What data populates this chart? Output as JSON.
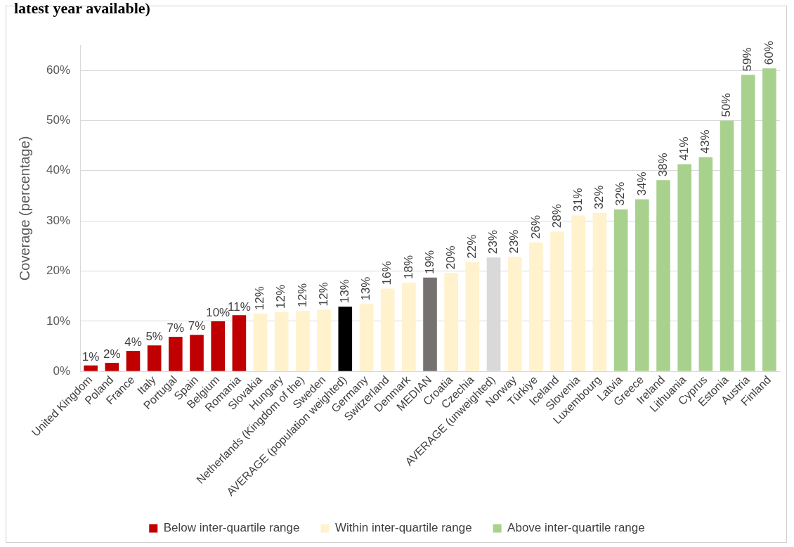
{
  "chart_data": {
    "type": "bar",
    "title": "latest year available)",
    "ylabel": "Coverage (percentage)",
    "categories": [
      "United Kingdom",
      "Poland",
      "France",
      "Italy",
      "Portugal",
      "Spain",
      "Belgium",
      "Romania",
      "Slovakia",
      "Hungary",
      "Netherlands (Kingdom of the)",
      "Sweden",
      "AVERAGE (population weighted)",
      "Germany",
      "Switzerland",
      "Denmark",
      "MEDIAN",
      "Croatia",
      "Czechia",
      "AVERAGE (unweighted)",
      "Norway",
      "Türkiye",
      "Iceland",
      "Slovenia",
      "Luxembourg",
      "Latvia",
      "Greece",
      "Ireland",
      "Lithuania",
      "Cyprus",
      "Estonia",
      "Austria",
      "Finland"
    ],
    "series": [
      {
        "name": "Below inter-quartile range",
        "color": "#c00000",
        "values": [
          1.2,
          1.7,
          4.1,
          5.2,
          6.9,
          7.3,
          10.0,
          11.2,
          null,
          null,
          null,
          null,
          null,
          null,
          null,
          null,
          null,
          null,
          null,
          null,
          null,
          null,
          null,
          null,
          null,
          null,
          null,
          null,
          null,
          null,
          null,
          null,
          null
        ],
        "value_labels": [
          "1%",
          "2%",
          "4%",
          "5%",
          "7%",
          "7%",
          "10%",
          "11%",
          null,
          null,
          null,
          null,
          null,
          null,
          null,
          null,
          null,
          null,
          null,
          null,
          null,
          null,
          null,
          null,
          null,
          null,
          null,
          null,
          null,
          null,
          null,
          null,
          null
        ]
      },
      {
        "name": "Within inter-quartile range",
        "color": "#fff2cc",
        "values": [
          null,
          null,
          null,
          null,
          null,
          null,
          null,
          null,
          11.5,
          11.8,
          12.1,
          12.3,
          null,
          13.4,
          16.5,
          17.7,
          null,
          19.6,
          21.8,
          null,
          22.8,
          25.7,
          27.9,
          31.1,
          31.6,
          null,
          null,
          null,
          null,
          null,
          null,
          null,
          null
        ],
        "value_labels": [
          null,
          null,
          null,
          null,
          null,
          null,
          null,
          null,
          "12%",
          "12%",
          "12%",
          "12%",
          null,
          "13%",
          "16%",
          "18%",
          null,
          "20%",
          "22%",
          null,
          "23%",
          "26%",
          "28%",
          "31%",
          "32%",
          null,
          null,
          null,
          null,
          null,
          null,
          null,
          null
        ]
      },
      {
        "name": "Above inter-quartile range",
        "color": "#a9d18e",
        "values": [
          null,
          null,
          null,
          null,
          null,
          null,
          null,
          null,
          null,
          null,
          null,
          null,
          null,
          null,
          null,
          null,
          null,
          null,
          null,
          null,
          null,
          null,
          null,
          null,
          null,
          32.3,
          34.3,
          38.1,
          41.3,
          42.7,
          50.0,
          59.1,
          60.4
        ],
        "value_labels": [
          null,
          null,
          null,
          null,
          null,
          null,
          null,
          null,
          null,
          null,
          null,
          null,
          null,
          null,
          null,
          null,
          null,
          null,
          null,
          null,
          null,
          null,
          null,
          null,
          null,
          "32%",
          "34%",
          "38%",
          "41%",
          "43%",
          "50%",
          "59%",
          "60%"
        ]
      },
      {
        "color": "#000000",
        "values": [
          null,
          null,
          null,
          null,
          null,
          null,
          null,
          null,
          null,
          null,
          null,
          null,
          12.9,
          null,
          null,
          null,
          null,
          null,
          null,
          null,
          null,
          null,
          null,
          null,
          null,
          null,
          null,
          null,
          null,
          null,
          null,
          null,
          null
        ],
        "value_labels": [
          null,
          null,
          null,
          null,
          null,
          null,
          null,
          null,
          null,
          null,
          null,
          null,
          "13%",
          null,
          null,
          null,
          null,
          null,
          null,
          null,
          null,
          null,
          null,
          null,
          null,
          null,
          null,
          null,
          null,
          null,
          null,
          null,
          null
        ]
      },
      {
        "color": "#767171",
        "values": [
          null,
          null,
          null,
          null,
          null,
          null,
          null,
          null,
          null,
          null,
          null,
          null,
          null,
          null,
          null,
          null,
          18.7,
          null,
          null,
          null,
          null,
          null,
          null,
          null,
          null,
          null,
          null,
          null,
          null,
          null,
          null,
          null,
          null
        ],
        "value_labels": [
          null,
          null,
          null,
          null,
          null,
          null,
          null,
          null,
          null,
          null,
          null,
          null,
          null,
          null,
          null,
          null,
          "19%",
          null,
          null,
          null,
          null,
          null,
          null,
          null,
          null,
          null,
          null,
          null,
          null,
          null,
          null,
          null,
          null
        ]
      },
      {
        "color": "#d9d9d9",
        "values": [
          null,
          null,
          null,
          null,
          null,
          null,
          null,
          null,
          null,
          null,
          null,
          null,
          null,
          null,
          null,
          null,
          null,
          null,
          null,
          22.7,
          null,
          null,
          null,
          null,
          null,
          null,
          null,
          null,
          null,
          null,
          null,
          null,
          null
        ],
        "value_labels": [
          null,
          null,
          null,
          null,
          null,
          null,
          null,
          null,
          null,
          null,
          null,
          null,
          null,
          null,
          null,
          null,
          null,
          null,
          null,
          "23%",
          null,
          null,
          null,
          null,
          null,
          null,
          null,
          null,
          null,
          null,
          null,
          null,
          null
        ]
      }
    ],
    "ylim": [
      0,
      65
    ],
    "yticks": [
      {
        "value": 0,
        "label": "0%"
      },
      {
        "value": 10,
        "label": "10%"
      },
      {
        "value": 20,
        "label": "20%"
      },
      {
        "value": 30,
        "label": "30%"
      },
      {
        "value": 40,
        "label": "40%"
      },
      {
        "value": 50,
        "label": "50%"
      },
      {
        "value": 60,
        "label": "60%"
      }
    ],
    "grid": "y",
    "legend": "bottom"
  }
}
